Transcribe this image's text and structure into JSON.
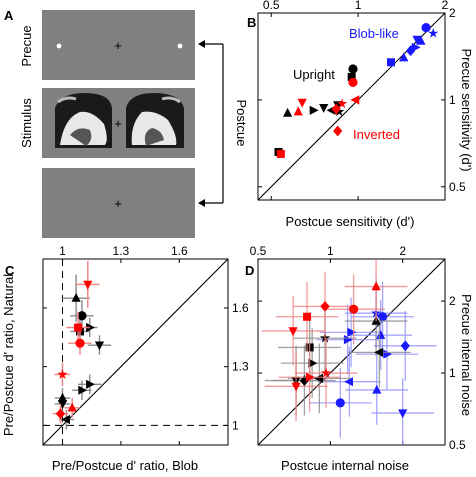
{
  "panel_a": {
    "letter": "A",
    "precue_label": "Precue",
    "stimulus_label": "Stimulus",
    "postcue_label": "Postcue",
    "fixation": "+",
    "screen_color": "#808080"
  },
  "chart_data": [
    {
      "panel": "B",
      "type": "scatter",
      "scale": "log",
      "xlabel": "Postcue sensitivity (d')",
      "ylabel": "Precue sensitivity (d')",
      "xlim": [
        0.45,
        2.0
      ],
      "ylim": [
        0.45,
        2.0
      ],
      "xticks": [
        "0.5",
        "1",
        "2"
      ],
      "yticks": [
        "0.5",
        "1",
        "2"
      ],
      "diagonal": true,
      "annotations": [
        {
          "text": "Blob-like",
          "color": "#1a1aff"
        },
        {
          "text": "Upright",
          "color": "#000000"
        },
        {
          "text": "Inverted",
          "color": "#ff0000"
        }
      ],
      "series": [
        {
          "name": "Blob-like",
          "color": "#1a1aff",
          "points": [
            {
              "x": 1.72,
              "y": 1.78,
              "m": "circle"
            },
            {
              "x": 1.82,
              "y": 1.7,
              "m": "star"
            },
            {
              "x": 1.65,
              "y": 1.6,
              "m": "tri-up"
            },
            {
              "x": 1.6,
              "y": 1.62,
              "m": "tri-down"
            },
            {
              "x": 1.58,
              "y": 1.52,
              "m": "tri-right"
            },
            {
              "x": 1.52,
              "y": 1.48,
              "m": "diamond"
            },
            {
              "x": 1.44,
              "y": 1.4,
              "m": "tri-up"
            },
            {
              "x": 1.3,
              "y": 1.35,
              "m": "square"
            }
          ]
        },
        {
          "name": "Upright",
          "color": "#000000",
          "points": [
            {
              "x": 0.96,
              "y": 1.28,
              "m": "circle"
            },
            {
              "x": 0.95,
              "y": 1.2,
              "m": "square"
            },
            {
              "x": 0.53,
              "y": 0.66,
              "m": "square"
            },
            {
              "x": 0.57,
              "y": 0.9,
              "m": "tri-up"
            },
            {
              "x": 0.7,
              "y": 0.92,
              "m": "tri-right"
            },
            {
              "x": 0.76,
              "y": 0.94,
              "m": "tri-down"
            },
            {
              "x": 0.81,
              "y": 0.92,
              "m": "tri-left"
            },
            {
              "x": 0.85,
              "y": 0.96,
              "m": "tri-down"
            },
            {
              "x": 0.86,
              "y": 0.91,
              "m": "star"
            }
          ]
        },
        {
          "name": "Inverted",
          "color": "#ff0000",
          "points": [
            {
              "x": 0.96,
              "y": 1.15,
              "m": "circle"
            },
            {
              "x": 0.54,
              "y": 0.65,
              "m": "square"
            },
            {
              "x": 0.62,
              "y": 0.91,
              "m": "tri-up"
            },
            {
              "x": 0.64,
              "y": 0.98,
              "m": "tri-down"
            },
            {
              "x": 0.84,
              "y": 0.93,
              "m": "diamond"
            },
            {
              "x": 0.88,
              "y": 0.97,
              "m": "star"
            },
            {
              "x": 0.98,
              "y": 1.0,
              "m": "tri-left"
            },
            {
              "x": 0.85,
              "y": 0.78,
              "m": "diamond"
            }
          ]
        }
      ]
    },
    {
      "panel": "C",
      "type": "scatter",
      "xlabel": "Pre/Postcue d' ratio, Blob",
      "ylabel": "Pre/Postcue d' ratio, Natural",
      "xlim": [
        0.9,
        1.85
      ],
      "ylim": [
        0.9,
        1.85
      ],
      "xticks": [
        "1",
        "1.3",
        "1.6"
      ],
      "yticks": [
        "1",
        "1.3",
        "1.6"
      ],
      "diagonal": true,
      "reference_lines": [
        1,
        1
      ],
      "series": [
        {
          "name": "Upright",
          "color": "#000000",
          "points": [
            {
              "x": 1.07,
              "y": 1.65,
              "xe": 0.07,
              "ye": 0.12,
              "m": "tri-up"
            },
            {
              "x": 1.1,
              "y": 1.56,
              "xe": 0.06,
              "ye": 0.08,
              "m": "circle"
            },
            {
              "x": 1.09,
              "y": 1.48,
              "xe": 0.05,
              "ye": 0.06,
              "m": "square"
            },
            {
              "x": 1.19,
              "y": 1.41,
              "xe": 0.06,
              "ye": 0.05,
              "m": "tri-down"
            },
            {
              "x": 1.14,
              "y": 1.5,
              "xe": 0.04,
              "ye": 0.05,
              "m": "tri-right"
            },
            {
              "x": 1.14,
              "y": 1.21,
              "xe": 0.06,
              "ye": 0.05,
              "m": "tri-right"
            },
            {
              "x": 1.1,
              "y": 1.18,
              "xe": 0.05,
              "ye": 0.05,
              "m": "tri-right"
            },
            {
              "x": 1.0,
              "y": 1.11,
              "xe": 0.04,
              "ye": 0.05,
              "m": "tri-down"
            },
            {
              "x": 1.0,
              "y": 1.14,
              "xe": 0.04,
              "ye": 0.05,
              "m": "tri-up"
            },
            {
              "x": 1.02,
              "y": 1.03,
              "xe": 0.04,
              "ye": 0.05,
              "m": "tri-left"
            }
          ]
        },
        {
          "name": "Inverted",
          "color": "#ff0000",
          "points": [
            {
              "x": 1.13,
              "y": 1.72,
              "xe": 0.06,
              "ye": 0.12,
              "m": "tri-down"
            },
            {
              "x": 1.08,
              "y": 1.5,
              "xe": 0.06,
              "ye": 0.08,
              "m": "square"
            },
            {
              "x": 1.09,
              "y": 1.42,
              "xe": 0.06,
              "ye": 0.06,
              "m": "circle"
            },
            {
              "x": 1.0,
              "y": 1.26,
              "xe": 0.04,
              "ye": 0.06,
              "m": "star"
            },
            {
              "x": 1.05,
              "y": 1.09,
              "xe": 0.04,
              "ye": 0.05,
              "m": "tri-up"
            },
            {
              "x": 0.99,
              "y": 1.06,
              "xe": 0.04,
              "ye": 0.05,
              "m": "diamond"
            }
          ]
        }
      ]
    },
    {
      "panel": "D",
      "type": "scatter",
      "scale": "log",
      "xlabel": "Postcue internal noise",
      "ylabel": "Precue internal noise",
      "xlim": [
        0.5,
        3.0
      ],
      "ylim": [
        0.5,
        3.0
      ],
      "xticks": [
        "0.5",
        "1",
        "2"
      ],
      "yticks": [
        "0.5",
        "1",
        "2"
      ],
      "diagonal": true,
      "series": [
        {
          "name": "Blob-like",
          "color": "#1a1aff",
          "points": [
            {
              "x": 1.55,
              "y": 1.78,
              "m": "star"
            },
            {
              "x": 1.65,
              "y": 1.72,
              "m": "circle"
            },
            {
              "x": 1.22,
              "y": 1.48,
              "m": "tri-right"
            },
            {
              "x": 1.18,
              "y": 1.38,
              "m": "tri-right"
            },
            {
              "x": 1.62,
              "y": 1.44,
              "m": "tri-up"
            },
            {
              "x": 1.72,
              "y": 1.2,
              "m": "tri-right"
            },
            {
              "x": 2.05,
              "y": 1.3,
              "m": "diamond"
            },
            {
              "x": 1.56,
              "y": 0.85,
              "m": "tri-up"
            },
            {
              "x": 1.2,
              "y": 0.92,
              "m": "tri-left"
            },
            {
              "x": 2.0,
              "y": 0.68,
              "m": "tri-down"
            },
            {
              "x": 1.1,
              "y": 0.75,
              "m": "circle"
            }
          ]
        },
        {
          "name": "Upright",
          "color": "#000000",
          "points": [
            {
              "x": 1.55,
              "y": 1.65,
              "m": "tri-up"
            },
            {
              "x": 1.6,
              "y": 1.22,
              "m": "tri-left"
            },
            {
              "x": 0.95,
              "y": 1.4,
              "m": "star"
            },
            {
              "x": 0.82,
              "y": 1.28,
              "m": "square"
            },
            {
              "x": 0.84,
              "y": 1.1,
              "m": "tri-right"
            },
            {
              "x": 0.72,
              "y": 0.93,
              "m": "tri-down"
            },
            {
              "x": 0.78,
              "y": 0.93,
              "m": "diamond"
            },
            {
              "x": 0.9,
              "y": 0.95,
              "m": "tri-left"
            }
          ]
        },
        {
          "name": "Inverted",
          "color": "#ff0000",
          "points": [
            {
              "x": 1.55,
              "y": 2.3,
              "m": "tri-up"
            },
            {
              "x": 0.95,
              "y": 1.9,
              "m": "diamond"
            },
            {
              "x": 1.25,
              "y": 1.85,
              "m": "circle"
            },
            {
              "x": 0.8,
              "y": 1.72,
              "m": "square"
            },
            {
              "x": 0.7,
              "y": 1.5,
              "m": "tri-down"
            },
            {
              "x": 0.96,
              "y": 1.0,
              "m": "star"
            },
            {
              "x": 0.82,
              "y": 0.96,
              "m": "tri-right"
            },
            {
              "x": 0.72,
              "y": 0.88,
              "m": "tri-down"
            }
          ]
        }
      ]
    }
  ]
}
